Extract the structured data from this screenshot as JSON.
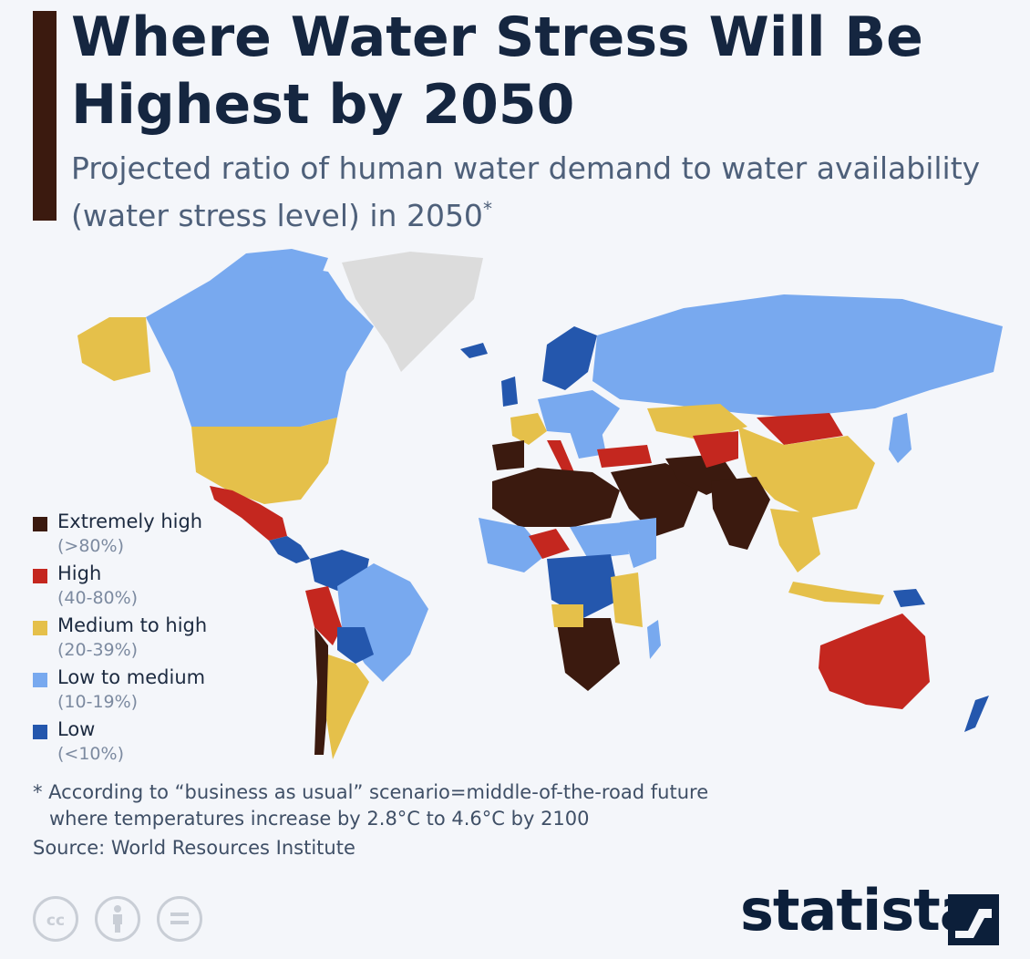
{
  "header": {
    "title": "Where Water Stress Will Be Highest by 2050",
    "subtitle": "Projected ratio of human water demand to water availability (water stress level) in 2050",
    "subtitle_marker": "*"
  },
  "legend": [
    {
      "label": "Extremely high",
      "range": "(>80%)",
      "color": "#3b1a0f"
    },
    {
      "label": "High",
      "range": "(40-80%)",
      "color": "#c4271f"
    },
    {
      "label": "Medium to high",
      "range": "(20-39%)",
      "color": "#e5c04a"
    },
    {
      "label": "Low to medium",
      "range": "(10-19%)",
      "color": "#78a9ef"
    },
    {
      "label": "Low",
      "range": "(<10%)",
      "color": "#2457ad"
    }
  ],
  "colors": {
    "accent_bar": "#3b1a0f",
    "no_data": "#dcdcdc",
    "title": "#152640",
    "subtitle": "#4e607a"
  },
  "footnote": {
    "line1": "* According to “business as usual” scenario=middle-of-the-road future",
    "line2": "where temperatures increase by 2.8°C to 4.6°C by 2100"
  },
  "source": "Source: World Resources Institute",
  "branding": {
    "logo_text": "statista",
    "license_icons": [
      "creative-commons-icon",
      "attribution-icon",
      "no-derivatives-icon"
    ]
  }
}
